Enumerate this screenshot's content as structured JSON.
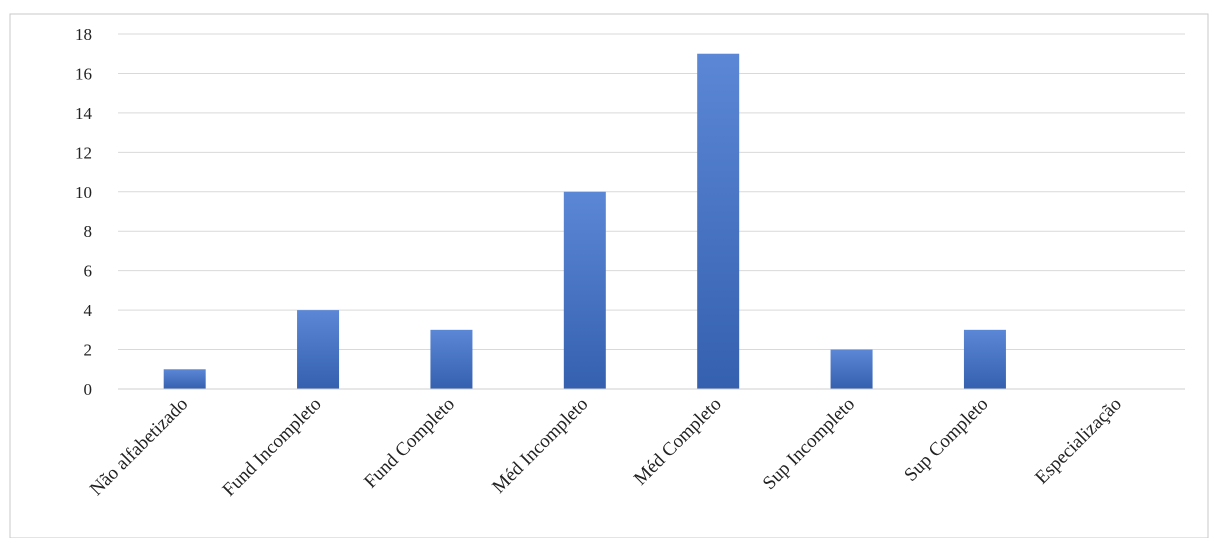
{
  "chart_data": {
    "type": "bar",
    "categories": [
      "Não alfabetizado",
      "Fund Incompleto",
      "Fund Completo",
      "Méd Incompleto",
      "Méd Completo",
      "Sup Incompleto",
      "Sup Completo",
      "Especialização"
    ],
    "values": [
      1,
      4,
      3,
      10,
      17,
      2,
      3,
      0
    ],
    "yticks": [
      "0",
      "2",
      "4",
      "6",
      "8",
      "10",
      "12",
      "14",
      "16",
      "18"
    ],
    "ylim": [
      0,
      18
    ],
    "grid": true,
    "legend": "none",
    "bar_color": "#4472c4",
    "bar_color_light": "#5b87d6",
    "bar_color_dark": "#3560b0"
  }
}
